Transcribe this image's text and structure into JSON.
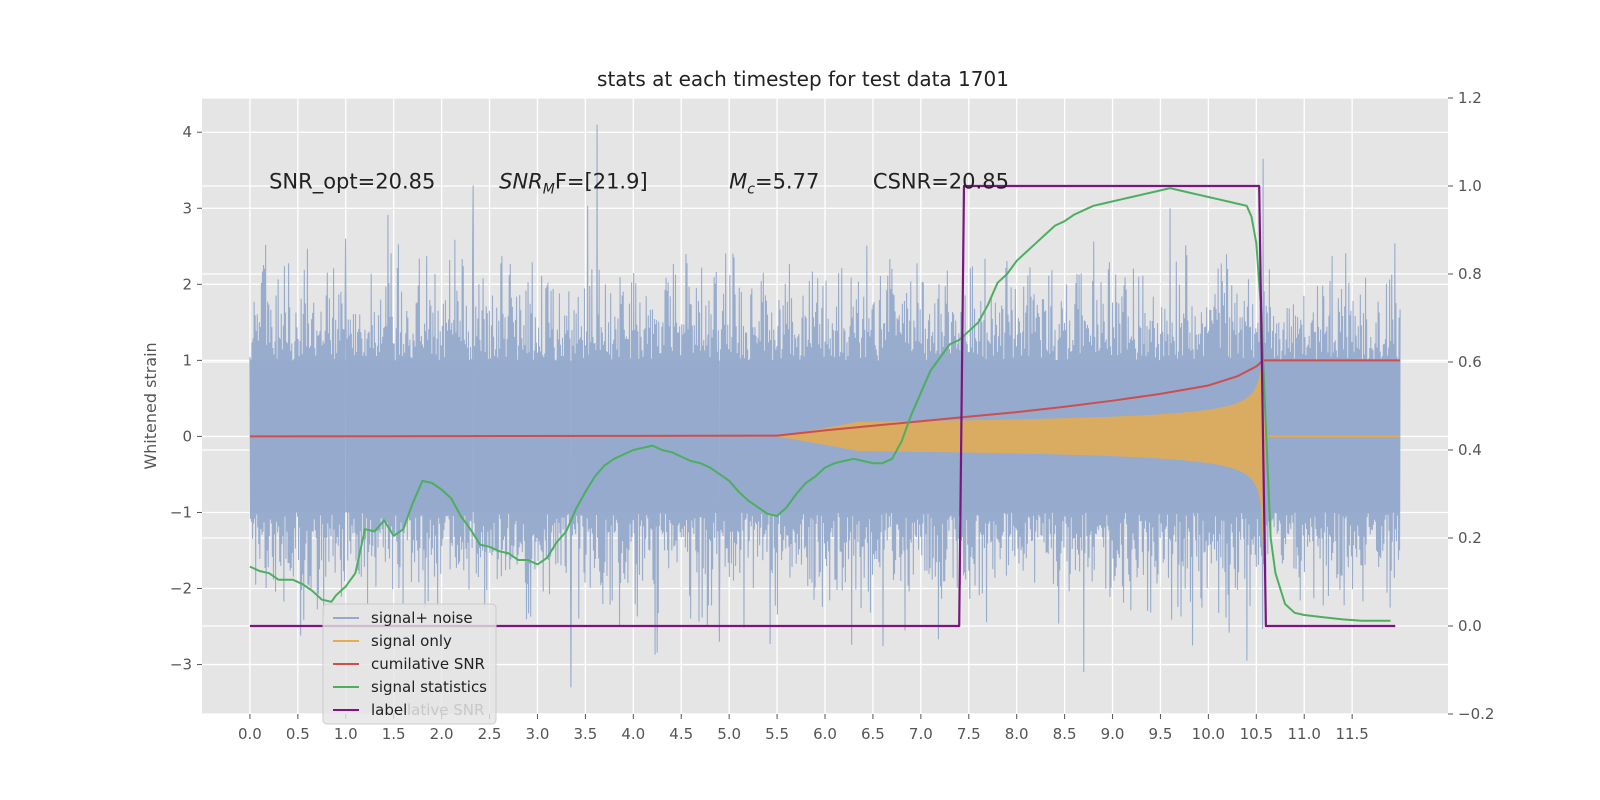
{
  "chart_data": {
    "type": "line",
    "title": "stats at each timestep for test data 1701",
    "xlabel": "",
    "ylabel": "Whitened strain",
    "ylabel_right": "",
    "xlim": [
      -0.5,
      12.5
    ],
    "ylim": [
      -3.65,
      4.45
    ],
    "ylim_right": [
      -0.2,
      1.2
    ],
    "x_ticks": [
      0.0,
      0.5,
      1.0,
      1.5,
      2.0,
      2.5,
      3.0,
      3.5,
      4.0,
      4.5,
      5.0,
      5.5,
      6.0,
      6.5,
      7.0,
      7.5,
      8.0,
      8.5,
      9.0,
      9.5,
      10.0,
      10.5,
      11.0,
      11.5
    ],
    "x_tick_labels": [
      "0.0",
      "0.5",
      "1.0",
      "1.5",
      "2.0",
      "2.5",
      "3.0",
      "3.5",
      "4.0",
      "4.5",
      "5.0",
      "5.5",
      "6.0",
      "6.5",
      "7.0",
      "7.5",
      "8.0",
      "8.5",
      "9.0",
      "9.5",
      "10.0",
      "10.5",
      "11.0",
      "11.5"
    ],
    "y_ticks": [
      -3,
      -2,
      -1,
      0,
      1,
      2,
      3,
      4
    ],
    "y_tick_labels": [
      "−3",
      "−2",
      "−1",
      "0",
      "1",
      "2",
      "3",
      "4"
    ],
    "y_right_ticks": [
      -0.2,
      0.0,
      0.2,
      0.4,
      0.6,
      0.8,
      1.0,
      1.2
    ],
    "y_right_tick_labels": [
      "−0.2",
      "0.0",
      "0.2",
      "0.4",
      "0.6",
      "0.8",
      "1.0",
      "1.2"
    ],
    "grid": true,
    "legend_position": "lower-left",
    "annotations": [
      {
        "text": "SNR_opt=20.85",
        "x": 0.2,
        "y": 3.35
      },
      {
        "text_main": "SNR",
        "text_sub": "M",
        "text_rest": "F=[21.9]",
        "x": 2.6,
        "y": 3.35
      },
      {
        "text_main": "M",
        "text_sub": "c",
        "text_rest": "=5.77",
        "x": 5.0,
        "y": 3.35
      },
      {
        "text": "CSNR=20.85",
        "x": 6.5,
        "y": 3.35
      }
    ],
    "legend": {
      "entries": [
        "signal+ noise",
        "signal only",
        "cumilative SNR",
        "signal statistics",
        "label"
      ],
      "ghost_text": "lative SNR"
    },
    "colors": {
      "background": "#e5e5e5",
      "grid": "#ffffff",
      "noise": "#94a9cc",
      "signal": "#e6ad4f",
      "cumulative": "#cf4d4d",
      "statistics": "#4caf5f",
      "label": "#7c1580"
    },
    "series": [
      {
        "name": "signal+ noise",
        "axis": "left",
        "kind": "noise-band",
        "x_range": [
          0.0,
          12.0
        ],
        "core_envelope": 1.0,
        "peak_envelope": 2.4,
        "notable_spikes": [
          [
            1.0,
            2.6
          ],
          [
            2.33,
            3.3
          ],
          [
            3.62,
            4.1
          ],
          [
            3.35,
            -3.3
          ],
          [
            8.7,
            -3.1
          ],
          [
            10.57,
            3.65
          ],
          [
            4.9,
            -2.7
          ],
          [
            10.4,
            -2.95
          ],
          [
            9.6,
            3.0
          ]
        ]
      },
      {
        "name": "signal only",
        "axis": "left",
        "kind": "chirp",
        "x_range": [
          5.5,
          10.6
        ],
        "merger_time": 10.57,
        "peak_amplitude": 1.0
      },
      {
        "name": "cumilative SNR",
        "axis": "left",
        "x": [
          0.0,
          5.5,
          6.0,
          6.5,
          7.0,
          7.5,
          8.0,
          8.5,
          9.0,
          9.5,
          10.0,
          10.3,
          10.5,
          10.57,
          12.0
        ],
        "y": [
          0.0,
          0.01,
          0.08,
          0.14,
          0.2,
          0.26,
          0.32,
          0.39,
          0.47,
          0.56,
          0.67,
          0.79,
          0.92,
          1.0,
          1.0
        ]
      },
      {
        "name": "signal statistics",
        "axis": "right",
        "x": [
          0.0,
          0.1,
          0.2,
          0.3,
          0.45,
          0.55,
          0.65,
          0.75,
          0.85,
          0.9,
          1.0,
          1.1,
          1.2,
          1.3,
          1.4,
          1.5,
          1.6,
          1.7,
          1.8,
          1.9,
          2.0,
          2.1,
          2.2,
          2.3,
          2.4,
          2.5,
          2.6,
          2.7,
          2.8,
          2.9,
          3.0,
          3.1,
          3.2,
          3.3,
          3.4,
          3.5,
          3.6,
          3.7,
          3.8,
          3.9,
          4.0,
          4.1,
          4.2,
          4.3,
          4.4,
          4.5,
          4.6,
          4.7,
          4.8,
          4.9,
          5.0,
          5.1,
          5.2,
          5.3,
          5.4,
          5.5,
          5.6,
          5.7,
          5.8,
          5.9,
          6.0,
          6.1,
          6.2,
          6.3,
          6.4,
          6.5,
          6.6,
          6.7,
          6.8,
          6.9,
          7.0,
          7.1,
          7.2,
          7.3,
          7.4,
          7.5,
          7.6,
          7.7,
          7.8,
          7.9,
          8.0,
          8.1,
          8.2,
          8.3,
          8.4,
          8.5,
          8.6,
          8.7,
          8.8,
          8.9,
          9.0,
          9.1,
          9.2,
          9.3,
          9.4,
          9.5,
          9.6,
          9.7,
          9.8,
          9.9,
          10.0,
          10.1,
          10.2,
          10.3,
          10.4,
          10.45,
          10.5,
          10.55,
          10.6,
          10.65,
          10.7,
          10.8,
          10.9,
          11.0,
          11.2,
          11.4,
          11.6,
          11.9
        ],
        "y": [
          0.135,
          0.125,
          0.12,
          0.105,
          0.105,
          0.095,
          0.08,
          0.06,
          0.055,
          0.07,
          0.09,
          0.12,
          0.22,
          0.215,
          0.24,
          0.205,
          0.22,
          0.28,
          0.33,
          0.325,
          0.31,
          0.29,
          0.25,
          0.22,
          0.185,
          0.18,
          0.17,
          0.165,
          0.15,
          0.15,
          0.14,
          0.155,
          0.19,
          0.215,
          0.265,
          0.305,
          0.34,
          0.365,
          0.38,
          0.39,
          0.4,
          0.405,
          0.41,
          0.4,
          0.395,
          0.385,
          0.375,
          0.37,
          0.36,
          0.345,
          0.33,
          0.305,
          0.285,
          0.27,
          0.255,
          0.25,
          0.27,
          0.3,
          0.325,
          0.34,
          0.36,
          0.37,
          0.375,
          0.38,
          0.375,
          0.37,
          0.37,
          0.38,
          0.42,
          0.48,
          0.53,
          0.58,
          0.61,
          0.64,
          0.65,
          0.67,
          0.69,
          0.73,
          0.78,
          0.8,
          0.83,
          0.85,
          0.87,
          0.89,
          0.91,
          0.92,
          0.935,
          0.945,
          0.955,
          0.96,
          0.965,
          0.97,
          0.975,
          0.98,
          0.985,
          0.99,
          0.995,
          0.99,
          0.985,
          0.98,
          0.975,
          0.97,
          0.965,
          0.96,
          0.955,
          0.93,
          0.87,
          0.72,
          0.45,
          0.2,
          0.12,
          0.05,
          0.03,
          0.025,
          0.02,
          0.015,
          0.012,
          0.012
        ]
      },
      {
        "name": "label",
        "axis": "right",
        "x": [
          0.0,
          7.4,
          7.45,
          10.53,
          10.6,
          11.95
        ],
        "y": [
          0.0,
          0.0,
          1.0,
          1.0,
          0.0,
          0.0
        ]
      }
    ]
  }
}
